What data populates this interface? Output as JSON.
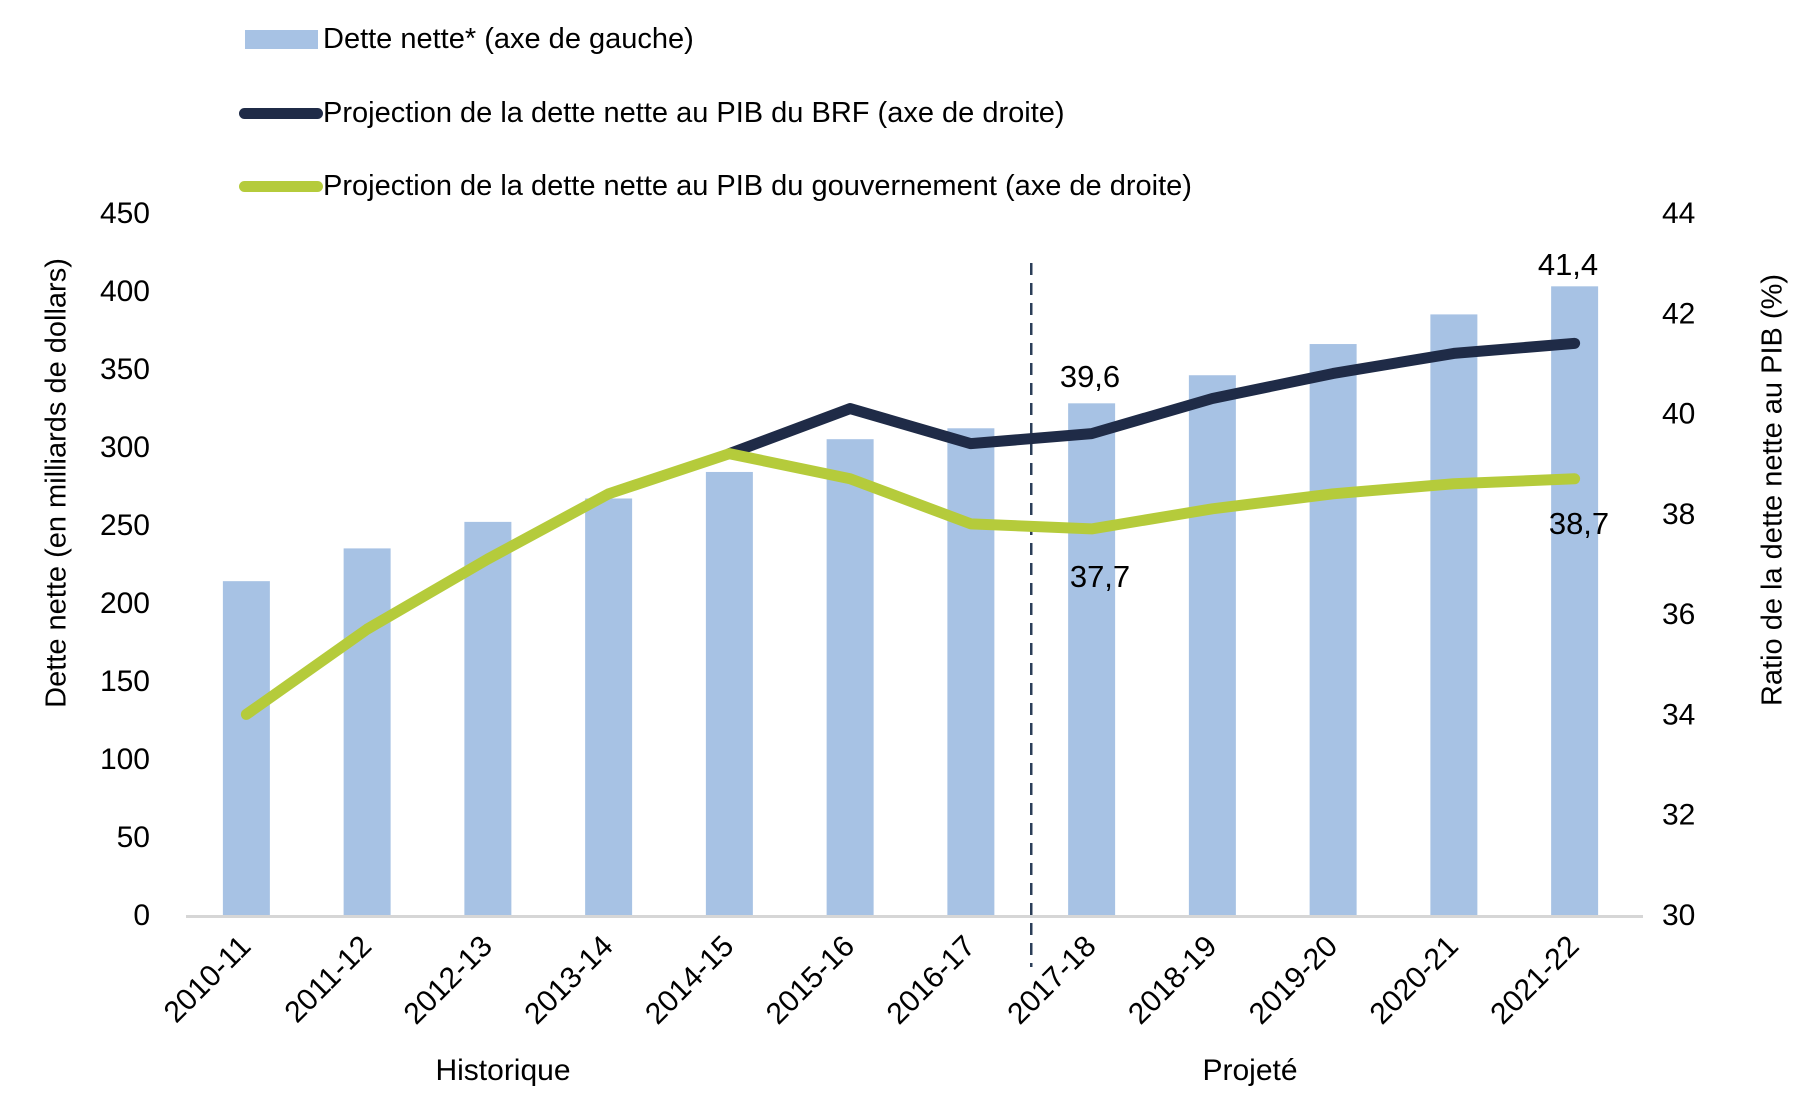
{
  "chart_data": {
    "type": "bar+line combo, dual axis",
    "categories": [
      "2010-11",
      "2011-12",
      "2012-13",
      "2013-14",
      "2014-15",
      "2015-16",
      "2016-17",
      "2017-18",
      "2018-19",
      "2019-20",
      "2020-21",
      "2021-22"
    ],
    "series": [
      {
        "id": "dette-nette",
        "name": "Dette nette* (axe de gauche)",
        "type": "bar",
        "axis": "left",
        "color": "#A7C2E4",
        "values": [
          214,
          235,
          252,
          267,
          284,
          305,
          312,
          328,
          346,
          366,
          385,
          403
        ]
      },
      {
        "id": "brf",
        "name": "Projection de la dette nette au PIB du BRF (axe de droite)",
        "type": "line",
        "axis": "right",
        "color": "#1F2B47",
        "values": [
          null,
          null,
          null,
          null,
          39.2,
          40.1,
          39.4,
          39.6,
          40.3,
          40.8,
          41.2,
          41.4
        ]
      },
      {
        "id": "gouvernement",
        "name": "Projection de la dette nette au PIB du gouvernement (axe de droite)",
        "type": "line",
        "axis": "right",
        "color": "#B5CB3B",
        "values": [
          34.0,
          35.7,
          37.1,
          38.4,
          39.2,
          38.7,
          37.8,
          37.7,
          38.1,
          38.4,
          38.6,
          38.7
        ]
      }
    ],
    "left_axis": {
      "title": "Dette nette (en milliards de dollars)",
      "min": 0,
      "max": 450,
      "step": 50,
      "tick_labels": [
        "450",
        "400",
        "350",
        "300",
        "250",
        "200",
        "150",
        "100",
        "50",
        "0"
      ]
    },
    "right_axis": {
      "title": "Ratio de la dette nette au PIB (%)",
      "min": 30,
      "max": 44,
      "step": 2,
      "tick_labels": [
        "44",
        "42",
        "40",
        "38",
        "36",
        "34",
        "32",
        "30"
      ]
    },
    "annotations": [
      {
        "text": "39,6",
        "series": "brf",
        "category": "2017-18"
      },
      {
        "text": "37,7",
        "series": "gouvernement",
        "category": "2017-18"
      },
      {
        "text": "41,4",
        "series": "brf",
        "category": "2021-22"
      },
      {
        "text": "38,7",
        "series": "gouvernement",
        "category": "2021-22"
      }
    ],
    "divider": {
      "after_category": "2016-17",
      "style": "dashed",
      "color": "#2B3E58"
    },
    "sections": [
      {
        "label": "Historique"
      },
      {
        "label": "Projeté"
      }
    ],
    "axis_line_color": "#D6D6D6",
    "background": "#FFFFFF",
    "grid": "off",
    "legend_position": "top-left"
  }
}
